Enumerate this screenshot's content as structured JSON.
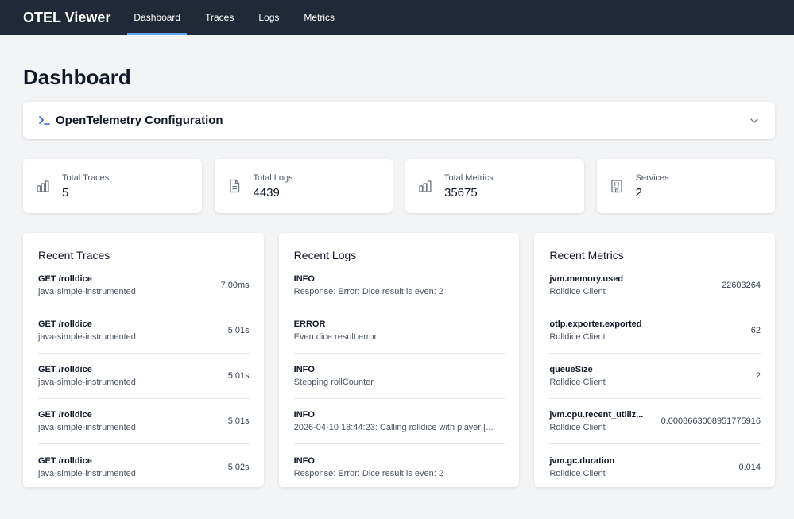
{
  "nav": {
    "brand": "OTEL Viewer",
    "items": [
      "Dashboard",
      "Traces",
      "Logs",
      "Metrics"
    ]
  },
  "page_title": "Dashboard",
  "config": {
    "title": "OpenTelemetry Configuration",
    "icon": "terminal-icon"
  },
  "stats": [
    {
      "label": "Total Traces",
      "value": "5",
      "icon": "bar-chart-icon"
    },
    {
      "label": "Total Logs",
      "value": "4439",
      "icon": "document-icon"
    },
    {
      "label": "Total Metrics",
      "value": "35675",
      "icon": "bar-chart-icon"
    },
    {
      "label": "Services",
      "value": "2",
      "icon": "building-icon"
    }
  ],
  "traces": {
    "title": "Recent Traces",
    "items": [
      {
        "name": "GET /rolldice",
        "service": "java-simple-instrumented",
        "duration": "7.00ms"
      },
      {
        "name": "GET /rolldice",
        "service": "java-simple-instrumented",
        "duration": "5.01s"
      },
      {
        "name": "GET /rolldice",
        "service": "java-simple-instrumented",
        "duration": "5.01s"
      },
      {
        "name": "GET /rolldice",
        "service": "java-simple-instrumented",
        "duration": "5.01s"
      },
      {
        "name": "GET /rolldice",
        "service": "java-simple-instrumented",
        "duration": "5.02s"
      }
    ]
  },
  "logs": {
    "title": "Recent Logs",
    "items": [
      {
        "level": "INFO",
        "message": "Response: Error: Dice result is even: 2"
      },
      {
        "level": "ERROR",
        "message": "Even dice result error"
      },
      {
        "level": "INFO",
        "message": "Stepping rollCounter"
      },
      {
        "level": "INFO",
        "message": "2026-04-10 18:44:23: Calling rolldice with player [..."
      },
      {
        "level": "INFO",
        "message": "Response: Error: Dice result is even: 2"
      }
    ]
  },
  "metrics": {
    "title": "Recent Metrics",
    "items": [
      {
        "name": "jvm.memory.used",
        "service": "Rolldice Client",
        "value": "22603264"
      },
      {
        "name": "otlp.exporter.exported",
        "service": "Rolldice Client",
        "value": "62"
      },
      {
        "name": "queueSize",
        "service": "Rolldice Client",
        "value": "2"
      },
      {
        "name": "jvm.cpu.recent_utiliz...",
        "service": "Rolldice Client",
        "value": "0.0008663008951775916"
      },
      {
        "name": "jvm.gc.duration",
        "service": "Rolldice Client",
        "value": "0.014"
      }
    ]
  },
  "colors": {
    "nav_bg": "#1f2937",
    "accent": "#60a5fa",
    "config_icon": "#2563eb"
  }
}
